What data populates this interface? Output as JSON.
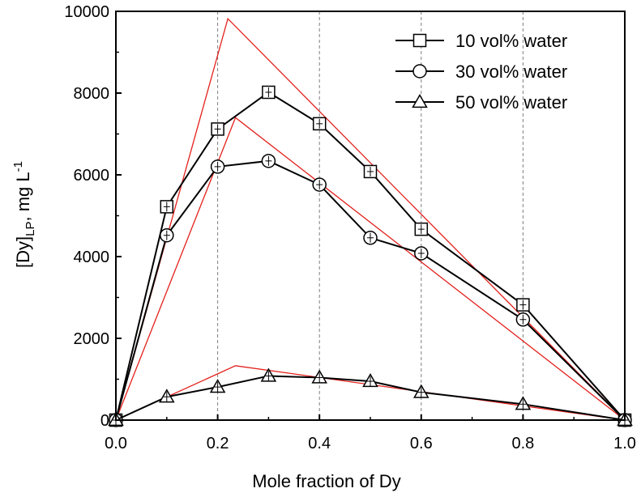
{
  "chart_data": {
    "type": "line",
    "xlabel": "Mole fraction of Dy",
    "ylabel": {
      "main": "[Dy]",
      "sub": "LP",
      "unit": ", mg L",
      "sup": "-1"
    },
    "xlim": [
      0.0,
      1.0
    ],
    "ylim": [
      0,
      10000
    ],
    "xticks": [
      0.0,
      0.2,
      0.4,
      0.6,
      0.8,
      1.0
    ],
    "xtick_labels": [
      "0.0",
      "0.2",
      "0.4",
      "0.6",
      "0.8",
      "1.0"
    ],
    "yticks": [
      0,
      2000,
      4000,
      6000,
      8000,
      10000
    ],
    "ytick_labels": [
      "0",
      "2000",
      "4000",
      "6000",
      "8000",
      "10000"
    ],
    "vertical_gridlines": [
      0.2,
      0.4,
      0.6,
      0.8
    ],
    "legend_position": "top-right",
    "series": [
      {
        "name": "10 vol% water",
        "marker": "square",
        "x": [
          0.0,
          0.1,
          0.2,
          0.3,
          0.4,
          0.5,
          0.6,
          0.8,
          1.0
        ],
        "y": [
          0,
          5220,
          7120,
          8020,
          7250,
          6080,
          4670,
          2820,
          0
        ]
      },
      {
        "name": "30 vol% water",
        "marker": "circle",
        "x": [
          0.0,
          0.1,
          0.2,
          0.3,
          0.4,
          0.5,
          0.6,
          0.8,
          1.0
        ],
        "y": [
          0,
          4520,
          6200,
          6340,
          5760,
          4460,
          4080,
          2460,
          0
        ]
      },
      {
        "name": "50 vol% water",
        "marker": "triangle",
        "x": [
          0.0,
          0.1,
          0.2,
          0.3,
          0.4,
          0.5,
          0.6,
          0.8,
          1.0
        ],
        "y": [
          0,
          570,
          810,
          1080,
          1040,
          950,
          680,
          390,
          0
        ]
      }
    ],
    "fit_lines": [
      {
        "color": "#e3201b",
        "x": [
          0.0,
          0.22,
          1.0
        ],
        "y": [
          0,
          9820,
          0
        ]
      },
      {
        "color": "#e3201b",
        "x": [
          0.0,
          0.235,
          1.0
        ],
        "y": [
          0,
          7400,
          0
        ]
      },
      {
        "color": "#e3201b",
        "x": [
          0.0,
          0.235,
          1.0
        ],
        "y": [
          0,
          1330,
          0
        ]
      }
    ],
    "colors": {
      "series": "#000000",
      "fit": "#e3201b",
      "grid": "#7f7f7f"
    }
  }
}
